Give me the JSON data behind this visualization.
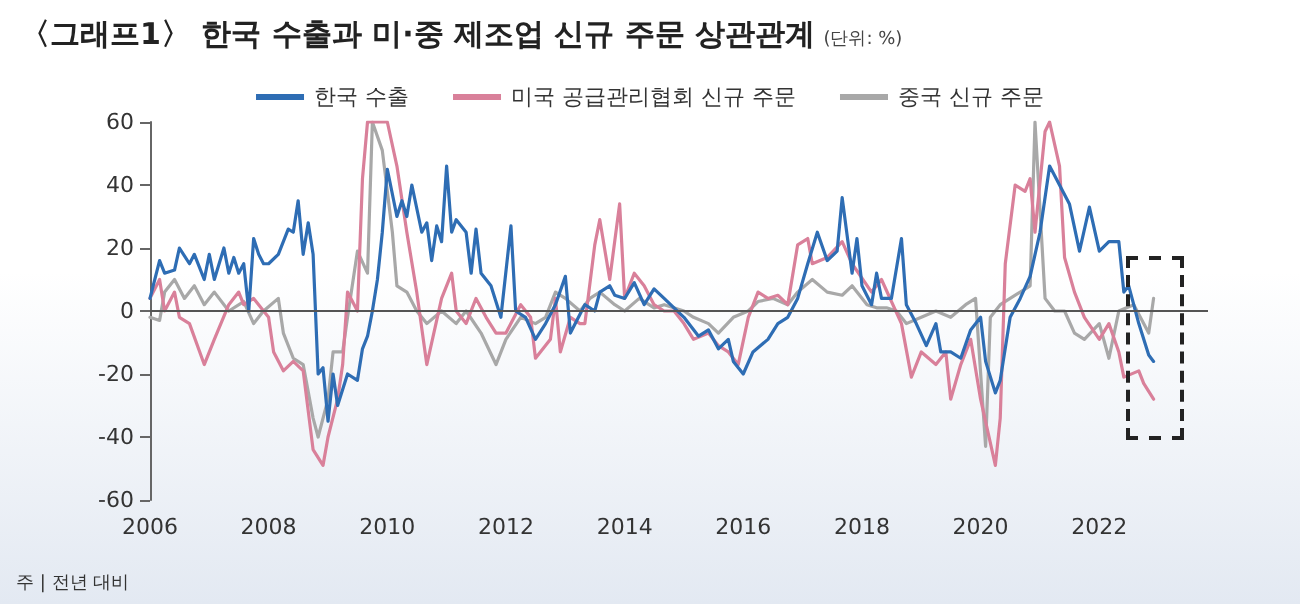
{
  "chart_data": {
    "type": "line",
    "title": "〈그래프1〉 한국 수출과 미·중 제조업 신규 주문 상관관계",
    "subtitle": "(단위: %)",
    "annotations": [
      "주 | 전년 대비"
    ],
    "series": [
      {
        "name": "한국 수출",
        "color": "#2e6db4",
        "x": [
          "2006-01",
          "2006-03",
          "2006-04",
          "2006-06",
          "2006-07",
          "2006-09",
          "2006-10",
          "2006-12",
          "2007-01",
          "2007-02",
          "2007-04",
          "2007-05",
          "2007-06",
          "2007-07",
          "2007-08",
          "2007-09",
          "2007-10",
          "2007-11",
          "2007-12",
          "2008-01",
          "2008-03",
          "2008-05",
          "2008-06",
          "2008-07",
          "2008-08",
          "2008-09",
          "2008-10",
          "2008-11",
          "2008-12",
          "2009-01",
          "2009-02",
          "2009-03",
          "2009-05",
          "2009-07",
          "2009-08",
          "2009-09",
          "2009-10",
          "2009-11",
          "2009-12",
          "2010-01",
          "2010-03",
          "2010-04",
          "2010-05",
          "2010-06",
          "2010-08",
          "2010-09",
          "2010-10",
          "2010-11",
          "2010-12",
          "2011-01",
          "2011-02",
          "2011-03",
          "2011-05",
          "2011-06",
          "2011-07",
          "2011-08",
          "2011-10",
          "2011-12",
          "2012-02",
          "2012-03",
          "2012-05",
          "2012-07",
          "2012-09",
          "2012-11",
          "2013-01",
          "2013-02",
          "2013-05",
          "2013-07",
          "2013-08",
          "2013-10",
          "2013-11",
          "2014-01",
          "2014-03",
          "2014-05",
          "2014-07",
          "2014-09",
          "2014-11",
          "2015-01",
          "2015-04",
          "2015-06",
          "2015-08",
          "2015-10",
          "2015-11",
          "2016-01",
          "2016-03",
          "2016-06",
          "2016-08",
          "2016-10",
          "2016-12",
          "2017-02",
          "2017-04",
          "2017-06",
          "2017-08",
          "2017-09",
          "2017-11",
          "2017-12",
          "2018-01",
          "2018-03",
          "2018-04",
          "2018-05",
          "2018-07",
          "2018-09",
          "2018-10",
          "2018-12",
          "2019-02",
          "2019-04",
          "2019-05",
          "2019-07",
          "2019-09",
          "2019-11",
          "2020-01",
          "2020-02",
          "2020-04",
          "2020-05",
          "2020-07",
          "2020-09",
          "2020-11",
          "2021-01",
          "2021-03",
          "2021-05",
          "2021-07",
          "2021-09",
          "2021-11",
          "2022-01",
          "2022-03",
          "2022-05",
          "2022-06",
          "2022-07",
          "2022-09",
          "2022-11",
          "2022-12"
        ],
        "values": [
          4,
          16,
          12,
          13,
          20,
          15,
          18,
          10,
          18,
          10,
          20,
          12,
          17,
          12,
          15,
          0,
          23,
          18,
          15,
          15,
          18,
          26,
          25,
          35,
          18,
          28,
          18,
          -20,
          -18,
          -35,
          -20,
          -30,
          -20,
          -22,
          -12,
          -8,
          0,
          10,
          25,
          45,
          30,
          35,
          30,
          40,
          25,
          28,
          16,
          27,
          22,
          46,
          25,
          29,
          25,
          12,
          26,
          12,
          8,
          -2,
          27,
          0,
          -2,
          -9,
          -4,
          2,
          11,
          -7,
          2,
          0,
          6,
          8,
          5,
          4,
          9,
          2,
          7,
          4,
          1,
          -2,
          -8,
          -6,
          -12,
          -9,
          -16,
          -20,
          -13,
          -9,
          -4,
          -2,
          4,
          15,
          25,
          16,
          19,
          36,
          12,
          23,
          8,
          2,
          12,
          4,
          4,
          23,
          2,
          -4,
          -11,
          -4,
          -13,
          -13,
          -15,
          -6,
          -2,
          -16,
          -26,
          -22,
          -2,
          4,
          11,
          25,
          46,
          40,
          34,
          19,
          33,
          19,
          22,
          22,
          6,
          8,
          -4,
          -14,
          -16
        ]
      },
      {
        "name": "미국 공급관리협회 신규 주문",
        "color": "#d9809a",
        "x": [
          "2006-01",
          "2006-03",
          "2006-04",
          "2006-06",
          "2006-07",
          "2006-09",
          "2006-12",
          "2007-02",
          "2007-05",
          "2007-07",
          "2007-08",
          "2007-10",
          "2008-01",
          "2008-02",
          "2008-04",
          "2008-06",
          "2008-08",
          "2008-10",
          "2008-12",
          "2009-01",
          "2009-03",
          "2009-04",
          "2009-05",
          "2009-07",
          "2009-08",
          "2009-09",
          "2009-11",
          "2010-01",
          "2010-03",
          "2010-05",
          "2010-07",
          "2010-09",
          "2010-12",
          "2011-02",
          "2011-03",
          "2011-05",
          "2011-07",
          "2011-09",
          "2011-11",
          "2012-01",
          "2012-04",
          "2012-06",
          "2012-07",
          "2012-10",
          "2012-11",
          "2012-12",
          "2013-02",
          "2013-04",
          "2013-05",
          "2013-07",
          "2013-08",
          "2013-10",
          "2013-12",
          "2014-01",
          "2014-03",
          "2014-05",
          "2014-07",
          "2014-09",
          "2014-11",
          "2015-01",
          "2015-03",
          "2015-06",
          "2015-08",
          "2015-10",
          "2015-12",
          "2016-02",
          "2016-04",
          "2016-06",
          "2016-08",
          "2016-10",
          "2016-12",
          "2017-02",
          "2017-03",
          "2017-06",
          "2017-09",
          "2017-11",
          "2018-03",
          "2018-05",
          "2018-09",
          "2018-11",
          "2019-01",
          "2019-04",
          "2019-06",
          "2019-07",
          "2019-09",
          "2019-11",
          "2020-01",
          "2020-04",
          "2020-05",
          "2020-06",
          "2020-08",
          "2020-10",
          "2020-11",
          "2020-12",
          "2021-02",
          "2021-03",
          "2021-05",
          "2021-06",
          "2021-08",
          "2021-10",
          "2022-01",
          "2022-03",
          "2022-05",
          "2022-06",
          "2022-09",
          "2022-10",
          "2022-12"
        ],
        "values": [
          4,
          10,
          0,
          6,
          -2,
          -4,
          -17,
          -9,
          2,
          6,
          2,
          4,
          -2,
          -13,
          -19,
          -16,
          -19,
          -44,
          -49,
          -40,
          -28,
          -17,
          6,
          0,
          42,
          60,
          60,
          60,
          46,
          25,
          6,
          -17,
          4,
          12,
          0,
          -4,
          4,
          -2,
          -7,
          -7,
          2,
          -2,
          -15,
          -9,
          4,
          -13,
          -2,
          -4,
          -4,
          21,
          29,
          10,
          34,
          4,
          12,
          8,
          2,
          0,
          0,
          -4,
          -9,
          -7,
          -11,
          -13,
          -17,
          -2,
          6,
          4,
          5,
          2,
          21,
          23,
          15,
          17,
          22,
          15,
          6,
          10,
          -4,
          -21,
          -13,
          -17,
          -13,
          -28,
          -17,
          -9,
          -28,
          -49,
          -34,
          15,
          40,
          38,
          42,
          25,
          57,
          60,
          46,
          17,
          6,
          -2,
          -9,
          -4,
          -13,
          -21,
          -19,
          -23,
          -28
        ]
      },
      {
        "name": "중국 신규 주문",
        "color": "#a8a8a8",
        "x": [
          "2006-01",
          "2006-03",
          "2006-04",
          "2006-06",
          "2006-08",
          "2006-10",
          "2006-12",
          "2007-02",
          "2007-05",
          "2007-08",
          "2007-10",
          "2007-12",
          "2008-03",
          "2008-04",
          "2008-06",
          "2008-08",
          "2008-10",
          "2008-11",
          "2009-01",
          "2009-02",
          "2009-04",
          "2009-05",
          "2009-07",
          "2009-09",
          "2009-10",
          "2009-12",
          "2010-02",
          "2010-03",
          "2010-05",
          "2010-07",
          "2010-09",
          "2010-12",
          "2011-03",
          "2011-05",
          "2011-08",
          "2011-11",
          "2012-01",
          "2012-04",
          "2012-07",
          "2012-09",
          "2012-11",
          "2013-01",
          "2013-04",
          "2013-06",
          "2013-08",
          "2013-11",
          "2014-01",
          "2014-04",
          "2014-07",
          "2014-09",
          "2015-01",
          "2015-03",
          "2015-06",
          "2015-08",
          "2015-11",
          "2016-02",
          "2016-04",
          "2016-07",
          "2016-10",
          "2016-12",
          "2017-03",
          "2017-06",
          "2017-09",
          "2017-11",
          "2018-02",
          "2018-04",
          "2018-06",
          "2018-08",
          "2018-10",
          "2019-01",
          "2019-04",
          "2019-07",
          "2019-10",
          "2019-12",
          "2020-02",
          "2020-03",
          "2020-05",
          "2020-07",
          "2020-09",
          "2020-11",
          "2020-12",
          "2021-02",
          "2021-04",
          "2021-06",
          "2021-08",
          "2021-10",
          "2022-01",
          "2022-03",
          "2022-05",
          "2022-08",
          "2022-11",
          "2022-12"
        ],
        "values": [
          -2,
          -3,
          6,
          10,
          4,
          8,
          2,
          6,
          0,
          3,
          -4,
          0,
          4,
          -7,
          -15,
          -17,
          -34,
          -40,
          -28,
          -13,
          -13,
          -2,
          19,
          12,
          60,
          51,
          25,
          8,
          6,
          0,
          -4,
          0,
          -4,
          0,
          -7,
          -17,
          -9,
          -2,
          -4,
          -2,
          6,
          4,
          0,
          4,
          6,
          2,
          0,
          4,
          1,
          2,
          0,
          -2,
          -4,
          -7,
          -2,
          0,
          3,
          4,
          2,
          6,
          10,
          6,
          5,
          8,
          2,
          1,
          1,
          0,
          -4,
          -2,
          0,
          -2,
          2,
          4,
          -43,
          -2,
          2,
          4,
          6,
          8,
          60,
          4,
          0,
          0,
          -7,
          -9,
          -4,
          -15,
          0,
          2,
          -7,
          4
        ]
      }
    ],
    "xlim": [
      "2006-01",
      "2023-11"
    ],
    "xticks": [
      "2006",
      "2008",
      "2010",
      "2012",
      "2014",
      "2016",
      "2018",
      "2020",
      "2022"
    ],
    "ylim": [
      -60,
      60
    ],
    "yticks": [
      -60,
      -40,
      -20,
      0,
      20,
      40,
      60
    ],
    "ref_lines": [
      {
        "axis": "y",
        "value": 0,
        "color": "#555555"
      }
    ],
    "grid": false,
    "legend": "top",
    "marker": "none",
    "line_style": "solid"
  }
}
